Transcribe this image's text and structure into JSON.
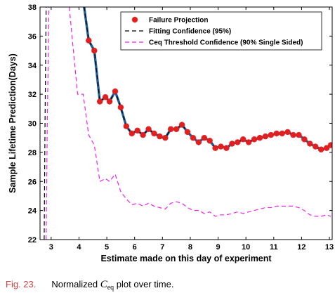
{
  "chart_data": {
    "type": "line",
    "xlabel": "Estimate made on this day of experiment",
    "ylabel": "Sample Lifetime Prediction(Days)",
    "xlim": [
      2.6,
      13.1
    ],
    "ylim": [
      22,
      38
    ],
    "xticks": [
      3,
      4,
      5,
      6,
      7,
      8,
      9,
      10,
      11,
      12,
      13
    ],
    "yticks": [
      22,
      24,
      26,
      28,
      30,
      32,
      34,
      36,
      38
    ],
    "grid": false,
    "legend_position": "top-right",
    "series": [
      {
        "name": "Failure Projection",
        "style": "line-with-star-markers",
        "line_color": "#1f5f9a",
        "marker_color": "#e02020",
        "x": [
          4.15,
          4.35,
          4.55,
          4.75,
          4.95,
          5.1,
          5.3,
          5.5,
          5.7,
          5.9,
          6.1,
          6.3,
          6.5,
          6.7,
          6.9,
          7.1,
          7.3,
          7.5,
          7.7,
          7.9,
          8.1,
          8.3,
          8.5,
          8.7,
          8.9,
          9.1,
          9.3,
          9.5,
          9.7,
          9.9,
          10.1,
          10.3,
          10.5,
          10.7,
          10.9,
          11.1,
          11.3,
          11.5,
          11.7,
          11.9,
          12.1,
          12.3,
          12.5,
          12.7,
          12.9,
          13.05
        ],
        "y": [
          38.5,
          35.7,
          35.0,
          31.5,
          31.8,
          31.5,
          32.2,
          31.1,
          29.8,
          29.3,
          29.5,
          29.2,
          29.6,
          29.3,
          29.1,
          29.0,
          29.6,
          29.6,
          29.9,
          29.4,
          29.0,
          28.7,
          29.0,
          28.8,
          28.3,
          28.4,
          28.3,
          28.6,
          28.7,
          28.9,
          28.7,
          28.9,
          29.0,
          29.1,
          29.2,
          29.3,
          29.3,
          29.4,
          29.2,
          29.2,
          28.9,
          28.6,
          28.4,
          28.2,
          28.3,
          28.5
        ]
      },
      {
        "name": "Fitting Confidence (95%)",
        "style": "dashed",
        "line_color": "#000000",
        "x": [
          4.15,
          4.35,
          4.55,
          4.75,
          4.95,
          5.1,
          5.3,
          5.5,
          5.7,
          5.9,
          6.1,
          6.3,
          6.5,
          6.7,
          6.9,
          7.1,
          7.3,
          7.5,
          7.7,
          7.9,
          8.1,
          8.3,
          8.5,
          8.7,
          8.9,
          9.1,
          9.3,
          9.5,
          9.7,
          9.9,
          10.1,
          10.3,
          10.5,
          10.7,
          10.9,
          11.1,
          11.3,
          11.5,
          11.7,
          11.9,
          12.1,
          12.3,
          12.5,
          12.7,
          12.9,
          13.05
        ],
        "y": [
          38.5,
          35.7,
          35.0,
          31.5,
          31.8,
          31.5,
          32.2,
          31.1,
          29.8,
          29.3,
          29.5,
          29.2,
          29.6,
          29.3,
          29.1,
          29.0,
          29.6,
          29.6,
          29.9,
          29.4,
          29.0,
          28.7,
          29.0,
          28.8,
          28.3,
          28.4,
          28.3,
          28.6,
          28.7,
          28.9,
          28.7,
          28.9,
          29.0,
          29.1,
          29.2,
          29.3,
          29.3,
          29.4,
          29.2,
          29.2,
          28.9,
          28.6,
          28.4,
          28.2,
          28.3,
          28.5
        ],
        "left_branch": {
          "x": [
            2.75,
            2.78,
            2.82
          ],
          "y": [
            22.0,
            30.0,
            38.0
          ]
        }
      },
      {
        "name": "Ceq Threshold Confidence (90% Single Sided)",
        "style": "dashed",
        "line_color": "#ee22ee",
        "x": [
          3.65,
          3.8,
          3.95,
          4.15,
          4.35,
          4.55,
          4.75,
          4.95,
          5.1,
          5.3,
          5.5,
          5.7,
          5.9,
          6.1,
          6.3,
          6.5,
          6.7,
          6.9,
          7.1,
          7.3,
          7.5,
          7.7,
          7.9,
          8.1,
          8.3,
          8.5,
          8.7,
          8.9,
          9.1,
          9.3,
          9.5,
          9.7,
          9.9,
          10.1,
          10.3,
          10.5,
          10.7,
          10.9,
          11.1,
          11.3,
          11.5,
          11.7,
          11.9,
          12.1,
          12.3,
          12.5,
          12.7,
          12.9,
          13.05
        ],
        "y": [
          38.0,
          35.0,
          32.0,
          32.0,
          29.2,
          28.5,
          26.0,
          26.2,
          26.0,
          26.5,
          25.3,
          24.8,
          24.4,
          24.5,
          24.3,
          24.5,
          24.3,
          24.2,
          24.1,
          24.5,
          24.6,
          24.5,
          24.2,
          24.0,
          24.0,
          23.8,
          23.9,
          23.6,
          23.7,
          23.7,
          23.8,
          23.9,
          23.8,
          23.9,
          24.0,
          24.1,
          24.2,
          24.2,
          24.3,
          24.3,
          24.3,
          24.3,
          24.2,
          24.0,
          23.7,
          23.6,
          23.6,
          23.7,
          23.6
        ],
        "left_branch": {
          "x": [
            2.82,
            2.86,
            2.92
          ],
          "y": [
            22.0,
            30.0,
            38.0
          ]
        }
      }
    ]
  },
  "caption": {
    "label": "Fig. 23.",
    "text_before": "Normalized ",
    "symbol": "C",
    "subscript": "eq",
    "text_after": " plot over time."
  }
}
